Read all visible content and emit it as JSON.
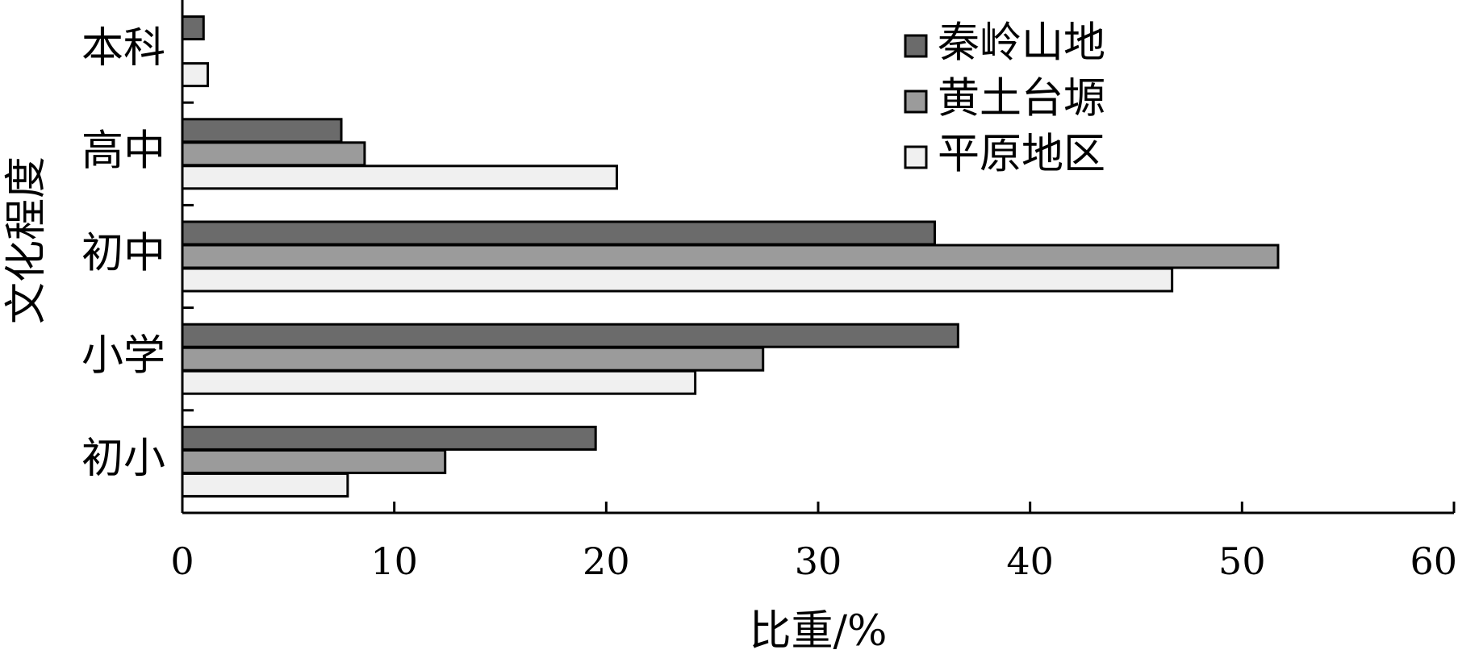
{
  "chart_data": {
    "type": "bar",
    "orientation": "horizontal",
    "categories": [
      "本科",
      "高中",
      "初中",
      "小学",
      "初小"
    ],
    "series": [
      {
        "name": "秦岭山地",
        "color": "#6b6b6b",
        "values": [
          1.0,
          7.5,
          35.5,
          36.6,
          19.5
        ]
      },
      {
        "name": "黄土台塬",
        "color": "#9b9b9b",
        "values": [
          0.0,
          8.6,
          51.7,
          27.4,
          12.4
        ]
      },
      {
        "name": "平原地区",
        "color": "#f0f0f0",
        "values": [
          1.2,
          20.5,
          46.7,
          24.2,
          7.8
        ]
      }
    ],
    "xlabel": "比重/%",
    "ylabel": "文化程度",
    "xlim": [
      0,
      60
    ],
    "xticks": [
      "0",
      "10",
      "20",
      "30",
      "40",
      "50",
      "60"
    ],
    "legend_position": "top-right",
    "grid": false
  }
}
